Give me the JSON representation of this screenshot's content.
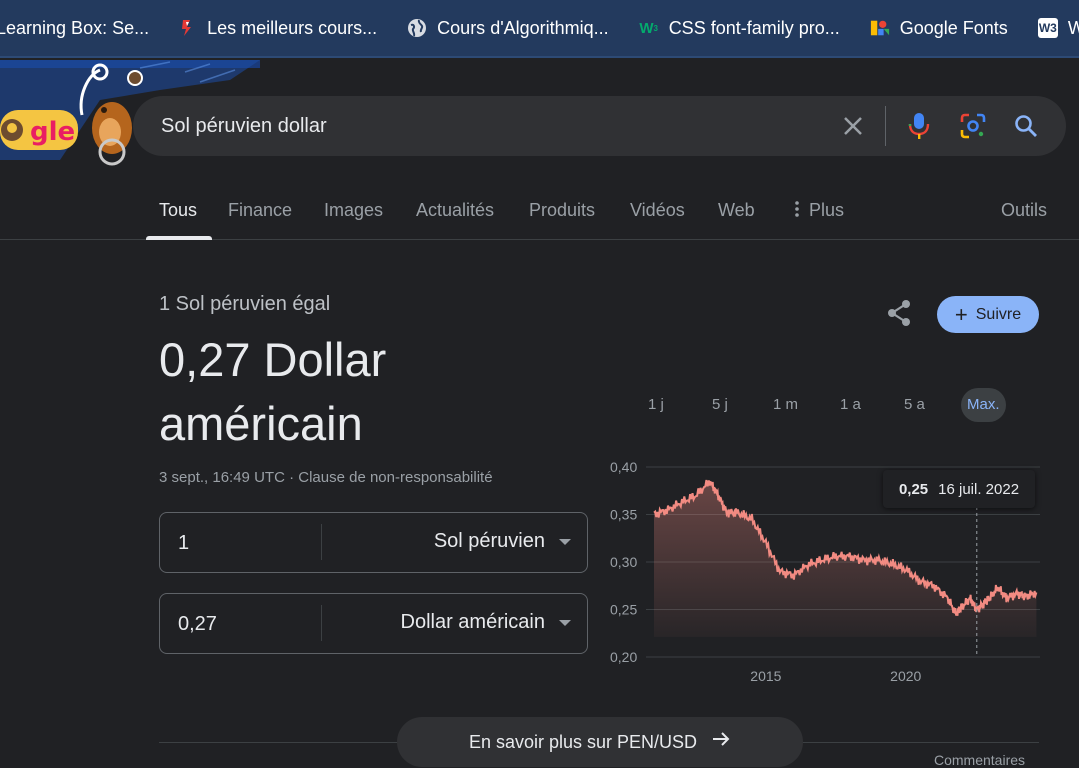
{
  "bookmarks": [
    {
      "label": "Learning Box: Se...",
      "icon": "learning-box-icon"
    },
    {
      "label": "Les meilleurs cours...",
      "icon": "bookmark-red-icon"
    },
    {
      "label": "Cours d'Algorithmiq...",
      "icon": "globe-icon"
    },
    {
      "label": "CSS font-family pro...",
      "icon": "w3-green-icon"
    },
    {
      "label": "Google Fonts",
      "icon": "google-fonts-icon"
    },
    {
      "label": "World",
      "icon": "w3schools-icon"
    }
  ],
  "search": {
    "query": "Sol péruvien dollar"
  },
  "tabs": [
    {
      "label": "Tous",
      "active": true
    },
    {
      "label": "Finance"
    },
    {
      "label": "Images"
    },
    {
      "label": "Actualités"
    },
    {
      "label": "Produits"
    },
    {
      "label": "Vidéos"
    },
    {
      "label": "Web"
    },
    {
      "label": "Plus"
    },
    {
      "label": "Outils"
    }
  ],
  "converter": {
    "equals_label": "1 Sol péruvien égal",
    "result_line1": "0,27 Dollar",
    "result_line2": "américain",
    "timestamp": "3 sept., 16:49 UTC",
    "dot": " · ",
    "disclaimer": "Clause de non-responsabilité",
    "from_amount": "1",
    "from_currency": "Sol péruvien",
    "to_amount": "0,27",
    "to_currency": "Dollar américain",
    "follow_label": "Suivre"
  },
  "ranges": [
    {
      "label": "1 j"
    },
    {
      "label": "5 j"
    },
    {
      "label": "1 m"
    },
    {
      "label": "1 a"
    },
    {
      "label": "5 a"
    },
    {
      "label": "Max.",
      "active": true
    }
  ],
  "chart_data": {
    "type": "area",
    "x": [
      2011.0,
      2011.5,
      2012.0,
      2012.5,
      2013.0,
      2013.3,
      2013.6,
      2014.0,
      2014.5,
      2015.0,
      2015.5,
      2016.0,
      2016.5,
      2017.0,
      2017.5,
      2018.0,
      2018.5,
      2019.0,
      2019.5,
      2020.0,
      2020.5,
      2021.0,
      2021.5,
      2021.8,
      2022.0,
      2022.3,
      2022.54,
      2022.8,
      2023.0,
      2023.3,
      2023.6,
      2024.0,
      2024.3,
      2024.67
    ],
    "values": [
      0.35,
      0.355,
      0.363,
      0.37,
      0.385,
      0.37,
      0.352,
      0.352,
      0.345,
      0.32,
      0.29,
      0.286,
      0.297,
      0.302,
      0.306,
      0.306,
      0.302,
      0.302,
      0.298,
      0.292,
      0.28,
      0.275,
      0.262,
      0.245,
      0.252,
      0.262,
      0.25,
      0.257,
      0.262,
      0.273,
      0.262,
      0.267,
      0.264,
      0.268
    ],
    "yticks": [
      "0,20",
      "0,25",
      "0,30",
      "0,35",
      "0,40"
    ],
    "xticks": [
      "2015",
      "2020"
    ],
    "ylim": [
      0.2,
      0.4
    ],
    "xlim": [
      2011.0,
      2024.8
    ],
    "grid": true,
    "line_color": "#f28b82",
    "tooltip": {
      "value": "0,25",
      "date": "16 juil. 2022",
      "x": 2022.54
    }
  },
  "learn_more": "En savoir plus sur PEN/USD",
  "comments": "Commentaires"
}
